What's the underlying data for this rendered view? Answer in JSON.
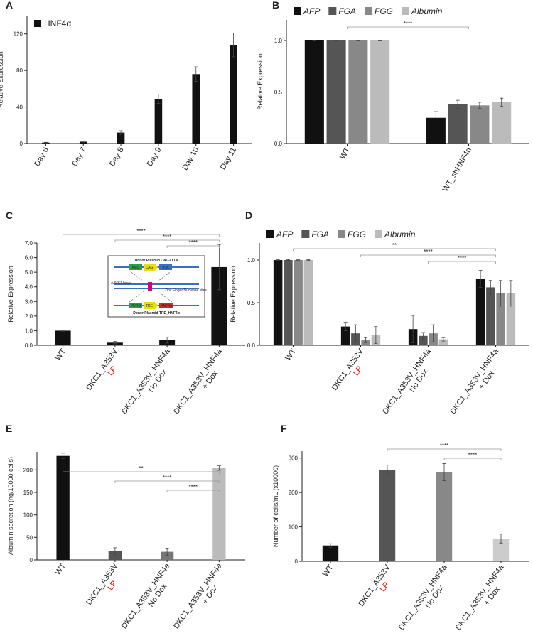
{
  "chart_data": [
    {
      "panel": "A",
      "type": "bar",
      "ylabel": "Relative Expression",
      "legend": "top-left",
      "categories": [
        [
          "Day 6"
        ],
        [
          "Day 7"
        ],
        [
          "Day 8"
        ],
        [
          "Day 9"
        ],
        [
          "Day 10"
        ],
        [
          "Day 11"
        ]
      ],
      "series": [
        {
          "name": "HNF4α",
          "color": "#111111",
          "values": [
            1,
            2,
            12,
            49,
            76,
            108
          ],
          "errors": [
            0.3,
            0.5,
            2,
            5,
            8,
            13
          ]
        }
      ],
      "ylim": [
        0,
        140
      ],
      "yticks": [
        0,
        40,
        80,
        120
      ]
    },
    {
      "panel": "B",
      "type": "bar",
      "ylabel": "Relative Expression",
      "legend": "top",
      "categories": [
        [
          "WT"
        ],
        [
          "WT_shHNF4α"
        ]
      ],
      "series": [
        {
          "name": "AFP",
          "color": "#111111",
          "values": [
            1,
            0.25
          ],
          "errors": [
            0.003,
            0.06
          ]
        },
        {
          "name": "FGA",
          "color": "#555555",
          "values": [
            1,
            0.38
          ],
          "errors": [
            0.003,
            0.04
          ]
        },
        {
          "name": "FGG",
          "color": "#888888",
          "values": [
            1,
            0.37
          ],
          "errors": [
            0.003,
            0.03
          ]
        },
        {
          "name": "Albumin",
          "color": "#bbbbbb",
          "values": [
            1,
            0.4
          ],
          "errors": [
            0.003,
            0.04
          ]
        }
      ],
      "ylim": [
        0,
        1.2
      ],
      "yticks": [
        {
          "value": 0,
          "label": "0.0"
        },
        0.5,
        {
          "value": 1,
          "label": "1.0"
        }
      ],
      "significance": [
        {
          "label": "****",
          "from": 0,
          "to": 1
        }
      ]
    },
    {
      "panel": "C",
      "type": "bar",
      "ylabel": "Relative Expression",
      "categories": [
        [
          "WT"
        ],
        [
          "DKC1_A353V",
          "LP"
        ],
        [
          "DKC1_A353V_HNF4a",
          "No Dox"
        ],
        [
          "DKC1_A353V_HNF4a",
          "+ Dox"
        ]
      ],
      "series": [
        {
          "color": "#111111",
          "values": [
            1,
            0.18,
            0.35,
            5.35
          ],
          "errors": [
            0.03,
            0.08,
            0.2,
            1.55
          ]
        }
      ],
      "ylim": [
        0,
        7
      ],
      "yticks": [
        {
          "value": 0,
          "label": "0.0"
        },
        {
          "value": 1,
          "label": "1.0"
        },
        {
          "value": 2,
          "label": "2.0"
        },
        {
          "value": 3,
          "label": "3.0"
        },
        {
          "value": 4,
          "label": "4.0"
        },
        {
          "value": 5,
          "label": "5.0"
        },
        {
          "value": 6,
          "label": "6.0"
        },
        {
          "value": 7,
          "label": "7.0"
        }
      ],
      "significance": [
        {
          "label": "****",
          "from": 0,
          "to": 3
        },
        {
          "label": "****",
          "from": 1,
          "to": 3
        },
        {
          "label": "****",
          "from": 2,
          "to": 3
        }
      ],
      "inset": {
        "top_title": "Donor Plasmid CAG-rTTA",
        "neo": "NEO",
        "cag": "CAG",
        "rtta": "rtTA",
        "locus": "AAVS1 locus",
        "zfn": "Zinc Finger Nuclease sites",
        "puro": "PURO",
        "tre": "TRE",
        "hnf": "HNF4α",
        "bottom_title": "Donor Plasmid TRE_HNF4α"
      }
    },
    {
      "panel": "D",
      "type": "bar",
      "ylabel": "Relative Expression",
      "legend": "top",
      "categories": [
        [
          "WT"
        ],
        [
          "DKC1_A353V",
          "LP"
        ],
        [
          "DKC1_A353V_HNF4a",
          "No Dox"
        ],
        [
          "DKC1_A353V_HNF4a",
          "+ Dox"
        ]
      ],
      "series": [
        {
          "name": "AFP",
          "color": "#111111",
          "values": [
            1,
            0.22,
            0.19,
            0.78
          ],
          "errors": [
            0.005,
            0.05,
            0.16,
            0.1
          ]
        },
        {
          "name": "FGA",
          "color": "#555555",
          "values": [
            1,
            0.14,
            0.11,
            0.68
          ],
          "errors": [
            0.005,
            0.1,
            0.04,
            0.08
          ]
        },
        {
          "name": "FGG",
          "color": "#888888",
          "values": [
            1,
            0.06,
            0.14,
            0.61
          ],
          "errors": [
            0.005,
            0.03,
            0.1,
            0.15
          ]
        },
        {
          "name": "Albumin",
          "color": "#bbbbbb",
          "values": [
            1,
            0.12,
            0.07,
            0.61
          ],
          "errors": [
            0.005,
            0.1,
            0.02,
            0.15
          ]
        }
      ],
      "ylim": [
        0,
        1.2
      ],
      "yticks": [
        {
          "value": 0,
          "label": "0.0"
        },
        0.5,
        {
          "value": 1,
          "label": "1.0"
        }
      ],
      "significance": [
        {
          "label": "**",
          "from": 0,
          "to": 3
        },
        {
          "label": "****",
          "from": 1,
          "to": 3
        },
        {
          "label": "****",
          "from": 2,
          "to": 3
        }
      ]
    },
    {
      "panel": "E",
      "type": "bar",
      "ylabel": "Albumin secretion (ng/10000 cells)",
      "categories": [
        [
          "WT"
        ],
        [
          "DKC1_A353V",
          "LP"
        ],
        [
          "DKC1_A353V_HNF4a",
          "No Dox"
        ],
        [
          "DKC1_A353V_HNF4a",
          "+ Dox"
        ]
      ],
      "series": [
        {
          "colors": [
            "#111111",
            "#555555",
            "#777777",
            "#bbbbbb"
          ],
          "values": [
            231,
            19,
            18,
            204
          ],
          "errors": [
            6,
            8,
            8,
            5
          ]
        }
      ],
      "ylim": [
        0,
        240
      ],
      "yticks": [
        0,
        50,
        100,
        150,
        200
      ],
      "significance": [
        {
          "label": "**",
          "from": 0,
          "to": 3
        },
        {
          "label": "****",
          "from": 1,
          "to": 3
        },
        {
          "label": "****",
          "from": 2,
          "to": 3
        }
      ]
    },
    {
      "panel": "F",
      "type": "bar",
      "ylabel": "Number of cells/mL (x10000)",
      "categories": [
        [
          "WT"
        ],
        [
          "DKC1_A353V",
          "LP"
        ],
        [
          "DKC1_A353V_HNF4a",
          "No Dox"
        ],
        [
          "DKC1_A353V_HNF4a",
          "+ Dox"
        ]
      ],
      "series": [
        {
          "colors": [
            "#111111",
            "#555555",
            "#888888",
            "#cccccc"
          ],
          "values": [
            46,
            265,
            259,
            66
          ],
          "errors": [
            5,
            15,
            25,
            13
          ]
        }
      ],
      "ylim": [
        0,
        320
      ],
      "yticks": [
        0,
        100,
        200,
        300
      ],
      "significance": [
        {
          "label": "****",
          "from": 1,
          "to": 3
        },
        {
          "label": "****",
          "from": 2,
          "to": 3
        }
      ]
    }
  ]
}
